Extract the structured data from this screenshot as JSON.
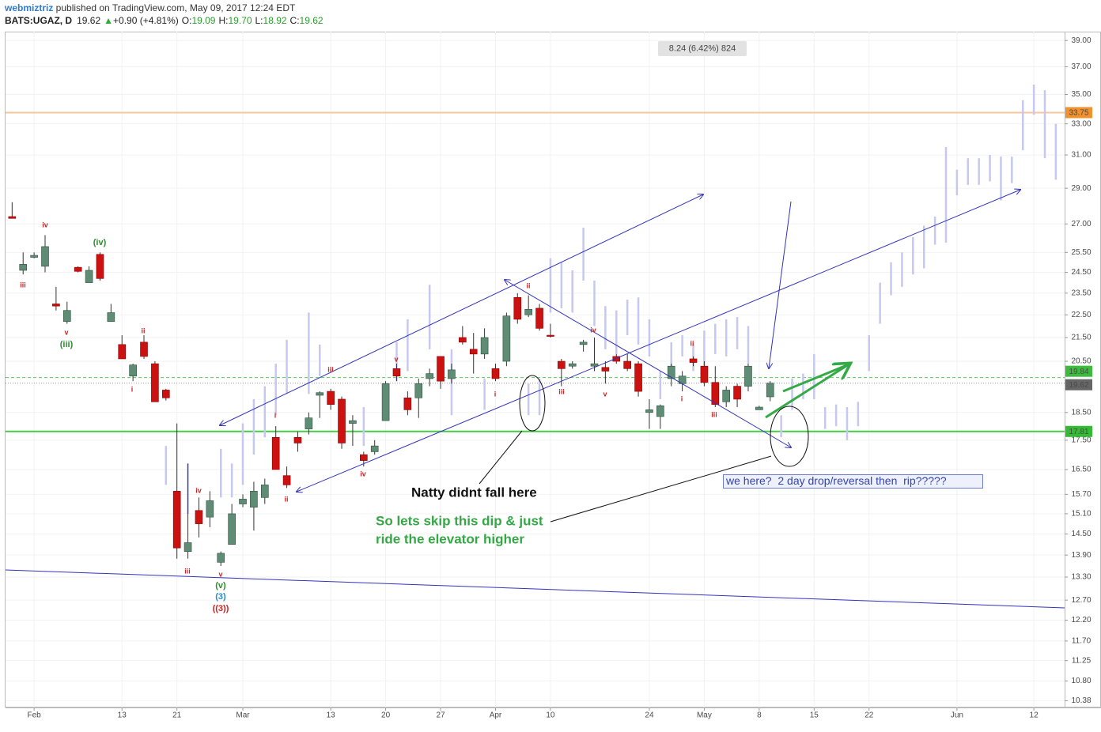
{
  "header": {
    "author": "webmiztriz",
    "published": " published on TradingView.com, May 09, 2017 12:24 EDT",
    "symbol": "BATS:UGAZ, D",
    "last": "19.62",
    "change": "+0.90 (+4.81%)",
    "o_label": "O:",
    "o": "19.09",
    "h_label": "H:",
    "h": "19.70",
    "l_label": "L:",
    "l": "18.92",
    "c_label": "C:",
    "c": "19.62"
  },
  "chart_data": {
    "type": "candlestick",
    "log_scale": true,
    "grid": true,
    "grid_color": "#f2f2f2",
    "up_color": "#5e8c74",
    "down_color": "#cc1111",
    "x": [
      0,
      1,
      2,
      3,
      4,
      5,
      6,
      7,
      8,
      9,
      10,
      11,
      12,
      13,
      14,
      15,
      16,
      17,
      18,
      19,
      20,
      21,
      22,
      23,
      24,
      25,
      26,
      27,
      28,
      29,
      30,
      31,
      32,
      33,
      34,
      35,
      36,
      37,
      38,
      39,
      40,
      41,
      42,
      43,
      44,
      45,
      46,
      47,
      48,
      49,
      50,
      51,
      52,
      53,
      54,
      55,
      56,
      57,
      58,
      59,
      60,
      61,
      62,
      63,
      64,
      65,
      66,
      67,
      68,
      69
    ],
    "open": [
      27.4,
      24.6,
      25.25,
      24.8,
      23.0,
      22.2,
      24.75,
      24.0,
      25.4,
      22.2,
      21.2,
      19.9,
      21.3,
      20.4,
      19.35,
      15.8,
      14.0,
      15.2,
      15.0,
      13.7,
      14.2,
      15.4,
      15.3,
      15.6,
      17.6,
      16.3,
      17.6,
      17.9,
      19.15,
      19.3,
      19.0,
      18.1,
      17.0,
      17.1,
      18.2,
      20.2,
      19.05,
      19.05,
      19.8,
      20.7,
      19.8,
      21.5,
      21.0,
      20.8,
      20.2,
      20.5,
      23.3,
      22.5,
      22.8,
      21.6,
      20.5,
      20.3,
      21.2,
      20.3,
      20.25,
      20.7,
      20.5,
      20.4,
      18.5,
      18.35,
      19.8,
      19.6,
      20.6,
      20.3,
      19.65,
      18.9,
      19.5,
      19.5,
      18.6,
      19.09
    ],
    "high": [
      28.2,
      25.5,
      25.5,
      26.4,
      23.8,
      23.1,
      24.8,
      24.8,
      25.5,
      23.0,
      21.6,
      20.4,
      21.6,
      20.5,
      19.4,
      18.1,
      16.7,
      15.6,
      15.8,
      14.0,
      15.4,
      15.7,
      16.1,
      16.2,
      18.0,
      16.6,
      17.8,
      18.5,
      19.3,
      19.4,
      19.1,
      18.4,
      17.1,
      17.5,
      19.7,
      20.4,
      19.3,
      19.8,
      20.2,
      20.7,
      20.4,
      22.0,
      21.7,
      21.9,
      20.4,
      22.6,
      23.5,
      23.4,
      23.0,
      22.1,
      20.6,
      20.5,
      21.4,
      21.5,
      20.5,
      20.8,
      20.8,
      20.5,
      19.0,
      18.8,
      20.4,
      20.1,
      20.7,
      20.5,
      20.3,
      19.5,
      19.6,
      20.4,
      18.75,
      19.7
    ],
    "low": [
      27.3,
      24.4,
      25.2,
      24.5,
      22.7,
      22.1,
      24.5,
      24.0,
      24.1,
      22.2,
      20.6,
      19.7,
      20.6,
      18.9,
      18.95,
      13.8,
      13.8,
      14.4,
      14.7,
      13.6,
      14.2,
      15.3,
      14.6,
      15.4,
      16.5,
      15.9,
      17.1,
      17.7,
      18.3,
      18.6,
      17.2,
      17.3,
      16.6,
      17.0,
      18.2,
      19.7,
      18.4,
      18.3,
      19.5,
      19.4,
      19.6,
      21.2,
      20.0,
      20.6,
      19.7,
      20.3,
      22.1,
      22.4,
      21.8,
      21.5,
      19.5,
      20.2,
      20.9,
      20.1,
      19.6,
      20.4,
      20.1,
      19.1,
      17.9,
      17.9,
      19.5,
      19.3,
      20.3,
      19.5,
      18.7,
      18.7,
      18.7,
      19.3,
      18.6,
      18.92
    ],
    "close": [
      27.3,
      24.9,
      25.35,
      25.8,
      22.9,
      22.7,
      24.55,
      24.6,
      24.2,
      22.6,
      20.6,
      20.35,
      20.7,
      18.9,
      19.05,
      14.1,
      14.25,
      14.8,
      15.5,
      13.95,
      15.1,
      15.55,
      15.8,
      16.0,
      16.5,
      16.0,
      17.4,
      18.3,
      19.25,
      18.8,
      17.4,
      18.2,
      16.8,
      17.3,
      19.6,
      19.9,
      18.6,
      19.6,
      20.0,
      19.7,
      20.15,
      21.3,
      20.8,
      21.5,
      19.8,
      22.45,
      22.3,
      22.75,
      21.9,
      21.55,
      20.2,
      20.4,
      21.3,
      20.4,
      20.1,
      20.5,
      20.2,
      19.3,
      18.6,
      18.75,
      20.3,
      19.9,
      20.45,
      19.65,
      18.8,
      19.35,
      19.0,
      20.3,
      18.7,
      19.62
    ],
    "projection": {
      "color": "#c6c8ee",
      "x": [
        14,
        16,
        19,
        20,
        21,
        22,
        23,
        24,
        25,
        27,
        28,
        32,
        35,
        36,
        38,
        40,
        43,
        47,
        48,
        49,
        50,
        51,
        52,
        53,
        54,
        55,
        56,
        57,
        58,
        59,
        60,
        61,
        62,
        63,
        64,
        65,
        66,
        67,
        70,
        71,
        72,
        73,
        74,
        75,
        76,
        77,
        78,
        79,
        80,
        81,
        82,
        83,
        84,
        85,
        86,
        87,
        88,
        89,
        90,
        91,
        92,
        93,
        94,
        95
      ],
      "low": [
        16.0,
        15.1,
        15.6,
        15.6,
        16.0,
        17.0,
        17.6,
        18.4,
        19.2,
        19.2,
        19.9,
        17.3,
        19.7,
        20.1,
        21.0,
        18.4,
        18.6,
        18.4,
        18.4,
        22.6,
        22.8,
        22.6,
        24.1,
        22.0,
        21.0,
        20.8,
        21.6,
        21.2,
        20.7,
        19.0,
        20.1,
        20.7,
        20.1,
        20.3,
        20.8,
        20.7,
        21.0,
        20.4,
        17.6,
        18.6,
        19.0,
        19.0,
        17.9,
        18.0,
        17.5,
        18.0,
        20.1,
        22.1,
        23.4,
        23.8,
        24.4,
        24.7,
        25.9,
        26.0,
        28.6,
        29.2,
        29.2,
        29.4,
        28.3,
        29.3,
        31.3,
        33.6,
        30.8,
        29.5
      ],
      "high": [
        17.3,
        16.7,
        17.2,
        16.7,
        18.1,
        19.0,
        19.5,
        20.4,
        21.4,
        22.6,
        21.2,
        18.7,
        21.3,
        22.3,
        23.9,
        21.0,
        19.8,
        19.6,
        19.8,
        25.2,
        25.0,
        24.6,
        26.8,
        24.1,
        22.9,
        22.7,
        23.2,
        23.3,
        22.3,
        20.1,
        21.3,
        21.6,
        21.2,
        21.8,
        22.1,
        22.3,
        22.4,
        22.0,
        18.4,
        19.8,
        20.0,
        20.8,
        18.7,
        18.8,
        18.7,
        18.9,
        21.6,
        24.0,
        25.0,
        25.5,
        26.3,
        26.9,
        27.4,
        31.5,
        30.1,
        30.8,
        30.8,
        31.0,
        30.9,
        30.9,
        34.6,
        35.7,
        35.3,
        33.0
      ]
    },
    "xlim": [
      -0.6,
      95.8
    ],
    "ylim": [
      10.24,
      39.7
    ],
    "xticks": [
      {
        "value": 2,
        "label": "Feb"
      },
      {
        "value": 10,
        "label": "13"
      },
      {
        "value": 15,
        "label": "21"
      },
      {
        "value": 21,
        "label": "Mar"
      },
      {
        "value": 29,
        "label": "13"
      },
      {
        "value": 34,
        "label": "20"
      },
      {
        "value": 39,
        "label": "27"
      },
      {
        "value": 44,
        "label": "Apr"
      },
      {
        "value": 49,
        "label": "10"
      },
      {
        "value": 58,
        "label": "24"
      },
      {
        "value": 63,
        "label": "May"
      },
      {
        "value": 68,
        "label": "8"
      },
      {
        "value": 73,
        "label": "15"
      },
      {
        "value": 78,
        "label": "22"
      },
      {
        "value": 86,
        "label": "Jun"
      },
      {
        "value": 93,
        "label": "12"
      }
    ],
    "yticks": [
      {
        "value": 39,
        "label": "39.00"
      },
      {
        "value": 37,
        "label": "37.00"
      },
      {
        "value": 35,
        "label": "35.00"
      },
      {
        "value": 33,
        "label": "33.00"
      },
      {
        "value": 31,
        "label": "31.00"
      },
      {
        "value": 29,
        "label": "29.00"
      },
      {
        "value": 27,
        "label": "27.00"
      },
      {
        "value": 25.5,
        "label": "25.50"
      },
      {
        "value": 24.5,
        "label": "24.50"
      },
      {
        "value": 23.5,
        "label": "23.50"
      },
      {
        "value": 22.5,
        "label": "22.50"
      },
      {
        "value": 21.5,
        "label": "21.50"
      },
      {
        "value": 20.5,
        "label": "20.50"
      },
      {
        "value": 18.5,
        "label": "18.50"
      },
      {
        "value": 17.5,
        "label": "17.50"
      },
      {
        "value": 16.5,
        "label": "16.50"
      },
      {
        "value": 15.7,
        "label": "15.70"
      },
      {
        "value": 15.1,
        "label": "15.10"
      },
      {
        "value": 14.5,
        "label": "14.50"
      },
      {
        "value": 13.9,
        "label": "13.90"
      },
      {
        "value": 13.3,
        "label": "13.30"
      },
      {
        "value": 12.7,
        "label": "12.70"
      },
      {
        "value": 12.2,
        "label": "12.20"
      },
      {
        "value": 11.7,
        "label": "11.70"
      },
      {
        "value": 11.25,
        "label": "11.25"
      },
      {
        "value": 10.8,
        "label": "10.80"
      },
      {
        "value": 10.38,
        "label": "10.38"
      }
    ],
    "price_lines": [
      {
        "value": 33.75,
        "color": "#f5c79a",
        "label_color": "#f0922e",
        "style": "solid"
      },
      {
        "value": 19.84,
        "color": "#55cc55",
        "label_color": "#3dbb3d",
        "style": "dashed"
      },
      {
        "value": 19.62,
        "color": "#999999",
        "label_color": "#666666",
        "style": "dotted"
      },
      {
        "value": 17.81,
        "color": "#44cc44",
        "label_color": "#33bb33",
        "style": "solid"
      }
    ],
    "measure_label": "8.24 (6.42%) 824",
    "annotations": [
      {
        "text": "iii",
        "color": "#cc2222"
      },
      {
        "text": "iv",
        "color": "#cc2222"
      },
      {
        "text": "(iv)",
        "color": "#2e8b2e"
      },
      {
        "text": "v",
        "color": "#cc2222"
      },
      {
        "text": "(iii)",
        "color": "#2e8b2e"
      },
      {
        "text": "ii",
        "color": "#cc2222"
      },
      {
        "text": "i",
        "color": "#cc2222"
      },
      {
        "text": "iii",
        "color": "#cc2222"
      },
      {
        "text": "iv",
        "color": "#cc2222"
      },
      {
        "text": "v",
        "color": "#cc2222"
      },
      {
        "text": "(v)",
        "color": "#2e8b2e"
      },
      {
        "text": "(3)",
        "color": "#2a8ac8"
      },
      {
        "text": "((3))",
        "color": "#cc2222"
      },
      {
        "text": "i",
        "color": "#cc2222"
      },
      {
        "text": "ii",
        "color": "#cc2222"
      },
      {
        "text": "iii",
        "color": "#cc2222"
      },
      {
        "text": "iv",
        "color": "#cc2222"
      },
      {
        "text": "v",
        "color": "#cc2222"
      },
      {
        "text": "i",
        "color": "#cc2222"
      },
      {
        "text": "ii",
        "color": "#cc2222"
      },
      {
        "text": "iii",
        "color": "#cc2222"
      },
      {
        "text": "iv",
        "color": "#cc2222"
      },
      {
        "text": "v",
        "color": "#cc2222"
      },
      {
        "text": "ii",
        "color": "#cc2222"
      },
      {
        "text": "i",
        "color": "#cc2222"
      },
      {
        "text": "iii",
        "color": "#cc2222"
      }
    ],
    "callouts": [
      "Natty didnt fall here",
      "So lets skip this dip & just",
      "ride the elevator higher",
      "we here?  2 day drop/reversal then  rip?????"
    ]
  }
}
